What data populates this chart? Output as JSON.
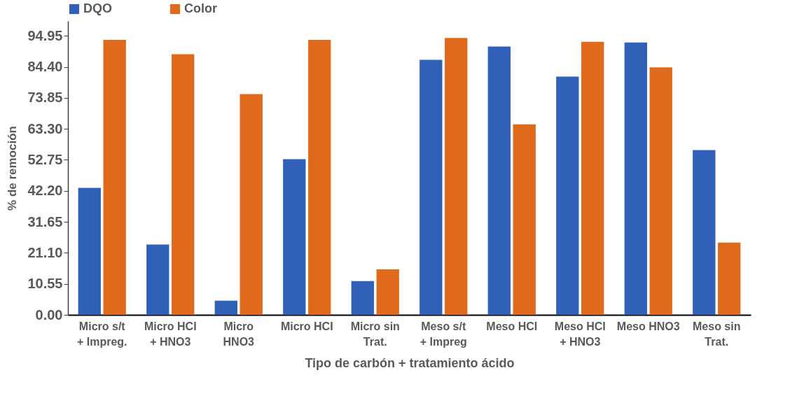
{
  "chart_data": {
    "type": "bar",
    "xlabel": "Tipo de carbón + tratamiento ácido",
    "ylabel": "% de remoción",
    "categories": [
      "Micro s/t + Impreg.",
      "Micro HCI + HNO3",
      "Micro HNO3",
      "Micro HCI",
      "Micro sin Trat.",
      "Meso s/t + Impreg",
      "Meso HCI",
      "Meso HCI + HNO3",
      "Meso HNO3",
      "Meso sin Trat."
    ],
    "series": [
      {
        "name": "DQO",
        "color": "#3060b8",
        "values": [
          43.2,
          23.9,
          4.8,
          53.0,
          11.5,
          86.8,
          91.3,
          81.1,
          92.7,
          56.1
        ]
      },
      {
        "name": "Color",
        "color": "#e06a1c",
        "values": [
          93.6,
          88.7,
          75.1,
          93.6,
          15.5,
          94.2,
          64.8,
          92.9,
          84.2,
          24.6
        ]
      }
    ],
    "ylim": [
      0,
      100
    ],
    "yticks": [
      {
        "value": 0,
        "label": "0.00"
      },
      10.55,
      {
        "value": 21.1,
        "label": "21.10"
      },
      31.65,
      {
        "value": 42.2,
        "label": "42.20"
      },
      52.75,
      {
        "value": 63.3,
        "label": "63.30"
      },
      73.85,
      {
        "value": 84.4,
        "label": "84.40"
      },
      94.95
    ],
    "grid": false,
    "legend": "top"
  }
}
